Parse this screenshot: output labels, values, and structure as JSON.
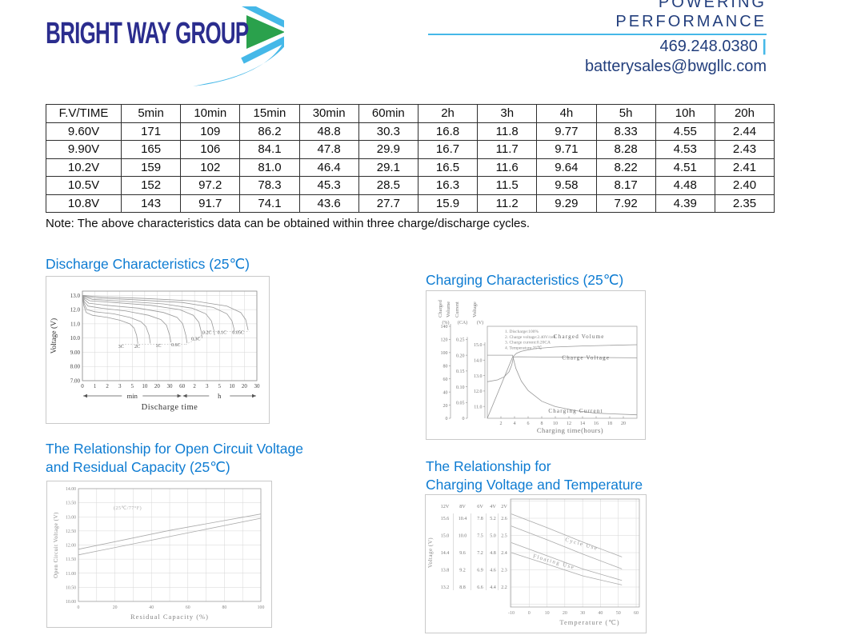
{
  "header": {
    "logo_text": "BRIGHT WAY GROUP",
    "tagline_line1": "POWERING",
    "tagline_line2": "PERFORMANCE",
    "phone": "469.248.0380",
    "phone_separator": "|",
    "email": "batterysales@bwgllc.com"
  },
  "colors": {
    "brand_navy": "#2b2d8e",
    "brand_light_blue": "#45b8e8",
    "brand_green": "#2aa14c",
    "contact_navy": "#223e7c",
    "section_title_blue": "#0e7cd2"
  },
  "table": {
    "headers": [
      "F.V/TIME",
      "5min",
      "10min",
      "15min",
      "30min",
      "60min",
      "2h",
      "3h",
      "4h",
      "5h",
      "10h",
      "20h"
    ],
    "rows": [
      [
        "9.60V",
        "171",
        "109",
        "86.2",
        "48.8",
        "30.3",
        "16.8",
        "11.8",
        "9.77",
        "8.33",
        "4.55",
        "2.44"
      ],
      [
        "9.90V",
        "165",
        "106",
        "84.1",
        "47.8",
        "29.9",
        "16.7",
        "11.7",
        "9.71",
        "8.28",
        "4.53",
        "2.43"
      ],
      [
        "10.2V",
        "159",
        "102",
        "81.0",
        "46.4",
        "29.1",
        "16.5",
        "11.6",
        "9.64",
        "8.22",
        "4.51",
        "2.41"
      ],
      [
        "10.5V",
        "152",
        "97.2",
        "78.3",
        "45.3",
        "28.5",
        "16.3",
        "11.5",
        "9.58",
        "8.17",
        "4.48",
        "2.40"
      ],
      [
        "10.8V",
        "143",
        "91.7",
        "74.1",
        "43.6",
        "27.7",
        "15.9",
        "11.2",
        "9.29",
        "7.92",
        "4.39",
        "2.35"
      ]
    ],
    "note": "Note: The above characteristics data can be obtained within three charge/discharge cycles."
  },
  "sections": {
    "discharge_title": "Discharge Characteristics (25℃)",
    "charging_title": "Charging Characteristics (25℃)",
    "ocv_title_line1": "The Relationship for Open Circuit Voltage",
    "ocv_title_line2": "and Residual Capacity (25℃)",
    "temp_title_line1": "The Relationship for",
    "temp_title_line2": "Charging Voltage and Temperature"
  },
  "chart_data": [
    {
      "id": "discharge",
      "type": "line",
      "title": "Discharge Characteristics (25℃)",
      "xlabel": "Discharge time",
      "ylabel": "Voltage (V)",
      "x_unit_segments": [
        "min",
        "h"
      ],
      "xticks": [
        "0",
        "1",
        "2",
        "3",
        "5",
        "10",
        "20",
        "30",
        "60",
        "2",
        "3",
        "5",
        "10",
        "20",
        "30"
      ],
      "yticks": [
        "13.0",
        "12.0",
        "11.0",
        "10.0",
        "9.00",
        "8.00",
        "7.00"
      ],
      "ytick_values": [
        13,
        12,
        11,
        10,
        9,
        8,
        7
      ],
      "ylim": [
        7,
        13.3
      ],
      "series": [
        {
          "name": "3C",
          "label_pos": [
            3.1,
            9.3
          ],
          "points": [
            [
              0,
              13.0
            ],
            [
              0.1,
              12.3
            ],
            [
              0.3,
              11.8
            ],
            [
              0.8,
              11.6
            ],
            [
              2,
              11.45
            ],
            [
              3,
              11.25
            ],
            [
              3.8,
              11.0
            ],
            [
              4.15,
              10.7
            ],
            [
              4.35,
              10.2
            ],
            [
              4.45,
              9.6
            ]
          ]
        },
        {
          "name": "2C",
          "label_pos": [
            4.4,
            9.3
          ],
          "points": [
            [
              0,
              13.0
            ],
            [
              0.12,
              12.45
            ],
            [
              0.35,
              12.0
            ],
            [
              1,
              11.85
            ],
            [
              2.5,
              11.7
            ],
            [
              3.8,
              11.45
            ],
            [
              4.7,
              11.15
            ],
            [
              5.1,
              10.8
            ],
            [
              5.35,
              10.2
            ],
            [
              5.45,
              9.62
            ]
          ]
        },
        {
          "name": "1C",
          "label_pos": [
            6.1,
            9.35
          ],
          "points": [
            [
              0,
              13.0
            ],
            [
              0.15,
              12.55
            ],
            [
              0.45,
              12.25
            ],
            [
              1.5,
              12.1
            ],
            [
              3.5,
              11.9
            ],
            [
              5.3,
              11.6
            ],
            [
              6.3,
              11.3
            ],
            [
              6.75,
              10.9
            ],
            [
              7.0,
              10.2
            ],
            [
              7.1,
              9.7
            ]
          ]
        },
        {
          "name": "0.6C",
          "label_pos": [
            7.5,
            9.42
          ],
          "points": [
            [
              0,
              13.0
            ],
            [
              0.18,
              12.7
            ],
            [
              0.5,
              12.45
            ],
            [
              2,
              12.3
            ],
            [
              4.5,
              12.1
            ],
            [
              6.5,
              11.8
            ],
            [
              7.6,
              11.45
            ],
            [
              8.05,
              11.0
            ],
            [
              8.3,
              10.2
            ],
            [
              8.4,
              9.65
            ]
          ]
        },
        {
          "name": "0.3C",
          "label_pos": [
            9.1,
            9.85
          ],
          "points": [
            [
              0,
              13.0
            ],
            [
              0.2,
              12.8
            ],
            [
              0.6,
              12.62
            ],
            [
              2.5,
              12.5
            ],
            [
              5.5,
              12.3
            ],
            [
              7.8,
              12.0
            ],
            [
              8.9,
              11.6
            ],
            [
              9.35,
              11.1
            ],
            [
              9.55,
              10.4
            ],
            [
              9.6,
              10.0
            ]
          ]
        },
        {
          "name": "0.2C",
          "label_pos": [
            10.0,
            10.28
          ],
          "points": [
            [
              0,
              13.0
            ],
            [
              0.25,
              12.88
            ],
            [
              0.8,
              12.72
            ],
            [
              3,
              12.6
            ],
            [
              6.5,
              12.4
            ],
            [
              8.8,
              12.1
            ],
            [
              9.9,
              11.7
            ],
            [
              10.35,
              11.2
            ],
            [
              10.55,
              10.55
            ],
            [
              10.6,
              10.2
            ]
          ]
        },
        {
          "name": "0.1C",
          "label_pos": [
            11.2,
            10.28
          ],
          "points": [
            [
              0,
              13.0
            ],
            [
              0.3,
              12.93
            ],
            [
              1,
              12.82
            ],
            [
              4,
              12.7
            ],
            [
              8,
              12.5
            ],
            [
              10.5,
              12.15
            ],
            [
              11.6,
              11.7
            ],
            [
              12.0,
              11.2
            ],
            [
              12.15,
              10.7
            ],
            [
              12.2,
              10.5
            ]
          ]
        },
        {
          "name": "0.05C",
          "label_pos": [
            12.5,
            10.28
          ],
          "points": [
            [
              0,
              13.0
            ],
            [
              0.35,
              12.97
            ],
            [
              1.5,
              12.9
            ],
            [
              5,
              12.78
            ],
            [
              9,
              12.6
            ],
            [
              11.6,
              12.25
            ],
            [
              12.7,
              11.8
            ],
            [
              13.1,
              11.3
            ],
            [
              13.25,
              10.75
            ],
            [
              13.3,
              10.55
            ]
          ]
        }
      ],
      "dotted_guides": [
        [
          [
            3.2,
            9.55
          ],
          [
            8.3,
            9.55
          ]
        ],
        [
          [
            8.3,
            9.55
          ],
          [
            9.3,
            10.0
          ]
        ],
        [
          [
            9.3,
            10.0
          ],
          [
            9.9,
            10.45
          ],
          [
            13.4,
            10.45
          ]
        ]
      ]
    },
    {
      "id": "charging",
      "type": "line",
      "title": "Charging Characteristics (25℃)",
      "xlabel": "Charging time(hours)",
      "xticks": [
        "2",
        "4",
        "6",
        "8",
        "10",
        "12",
        "14",
        "16",
        "18",
        "20"
      ],
      "xtick_values": [
        2,
        4,
        6,
        8,
        10,
        12,
        14,
        16,
        18,
        20
      ],
      "xlim": [
        0,
        22
      ],
      "axes": [
        {
          "name": "volume",
          "title": [
            "Charged",
            "Volume"
          ],
          "unit": "(%)",
          "ticks": [
            "140",
            "120",
            "100",
            "80",
            "60",
            "40",
            "20",
            "0"
          ],
          "values": [
            140,
            120,
            100,
            80,
            60,
            40,
            20,
            0
          ]
        },
        {
          "name": "current",
          "title": [
            "Current"
          ],
          "unit": "(CA)",
          "ticks": [
            "0.25",
            "0.20",
            "0.15",
            "0.10",
            "0.05",
            "0"
          ],
          "values": [
            0.25,
            0.2,
            0.15,
            0.1,
            0.05,
            0
          ]
        },
        {
          "name": "voltage",
          "title": [
            "Voltage"
          ],
          "unit": "(V)",
          "ticks": [
            "15.0",
            "14.0",
            "13.0",
            "12.0",
            "11.0"
          ],
          "values": [
            15,
            14,
            13,
            12,
            11
          ]
        }
      ],
      "notes": [
        "1. Discharge:100%",
        "2. Charge voltage:2.40V/cell",
        "3. Charge current:0.20CA",
        "4. Temperature:25℃"
      ],
      "series": [
        {
          "name": "Charged Volume",
          "axis": "volume",
          "label_pos": [
            13.5,
            122
          ],
          "points": [
            [
              0,
              0
            ],
            [
              3.7,
              93
            ],
            [
              4.3,
              99
            ],
            [
              5,
              102
            ],
            [
              7,
              106
            ],
            [
              10,
              108.5
            ],
            [
              14,
              110
            ],
            [
              22,
              112
            ]
          ]
        },
        {
          "name": "Charge Voltage",
          "axis": "voltage",
          "label_pos": [
            14.5,
            14.05
          ],
          "points": [
            [
              0,
              12.6
            ],
            [
              1.5,
              12.72
            ],
            [
              2.5,
              12.92
            ],
            [
              3.2,
              13.25
            ],
            [
              3.6,
              13.7
            ],
            [
              3.85,
              14.2
            ],
            [
              4.5,
              14.22
            ],
            [
              22,
              14.15
            ]
          ]
        },
        {
          "name": "Charging Current",
          "axis": "current",
          "label_pos": [
            13.0,
            0.018
          ],
          "points": [
            [
              0,
              0.2
            ],
            [
              3.7,
              0.2
            ],
            [
              4.2,
              0.158
            ],
            [
              5,
              0.118
            ],
            [
              6,
              0.088
            ],
            [
              8,
              0.054
            ],
            [
              10,
              0.037
            ],
            [
              13,
              0.024
            ],
            [
              16,
              0.016
            ],
            [
              22,
              0.011
            ]
          ]
        }
      ]
    },
    {
      "id": "ocv",
      "type": "line",
      "ylabel": "Open Circuit Voltage (V)",
      "xlabel": "Residual Capacity (%)",
      "yticks": [
        "14.00",
        "13.50",
        "13.00",
        "12.50",
        "12.00",
        "11.50",
        "11.00",
        "10.50",
        "10.00"
      ],
      "ytick_values": [
        14,
        13.5,
        13,
        12.5,
        12,
        11.5,
        11,
        10.5,
        10
      ],
      "xticks": [
        "0",
        "20",
        "40",
        "60",
        "80",
        "100"
      ],
      "xtick_values": [
        0,
        20,
        40,
        60,
        80,
        100
      ],
      "annotation": "(25℃/77°F)",
      "annotation_pos": [
        27,
        13.26
      ],
      "series": [
        {
          "name": "upper",
          "points": [
            [
              0,
              11.85
            ],
            [
              50,
              12.52
            ],
            [
              100,
              13.1
            ]
          ]
        },
        {
          "name": "lower",
          "points": [
            [
              0,
              11.65
            ],
            [
              50,
              12.3
            ],
            [
              100,
              12.95
            ]
          ]
        }
      ]
    },
    {
      "id": "temperature",
      "type": "line",
      "ylabel": "Voltage (V)",
      "xlabel": "Temperature (℃)",
      "scales": [
        {
          "name": "12V",
          "ticks": [
            "15.6",
            "15.0",
            "14.4",
            "13.8",
            "13.2"
          ]
        },
        {
          "name": "8V",
          "ticks": [
            "10.4",
            "10.0",
            "9.6",
            "9.2",
            "8.8"
          ]
        },
        {
          "name": "6V",
          "ticks": [
            "7.8",
            "7.5",
            "7.2",
            "6.9",
            "6.6"
          ]
        },
        {
          "name": "4V",
          "ticks": [
            "5.2",
            "5.0",
            "4.8",
            "4.6",
            "4.4"
          ]
        },
        {
          "name": "2V",
          "ticks": [
            "2.6",
            "2.5",
            "2.4",
            "2.3",
            "2.2"
          ]
        }
      ],
      "xticks": [
        "-10",
        "0",
        "10",
        "20",
        "30",
        "40",
        "50",
        "60"
      ],
      "xtick_values": [
        -10,
        0,
        10,
        20,
        30,
        40,
        50,
        60
      ],
      "bands": [
        {
          "name": "Cycle Use",
          "label_pos": [
            20,
            2.468
          ],
          "lines": [
            [
              [
                -10,
                2.625
              ],
              [
                10,
                2.545
              ],
              [
                30,
                2.462
              ],
              [
                52,
                2.375
              ]
            ],
            [
              [
                -10,
                2.555
              ],
              [
                10,
                2.475
              ],
              [
                30,
                2.392
              ],
              [
                52,
                2.305
              ]
            ]
          ]
        },
        {
          "name": "Floating Use",
          "label_pos": [
            2,
            2.372
          ],
          "lines": [
            [
              [
                -10,
                2.458
              ],
              [
                10,
                2.382
              ],
              [
                30,
                2.305
              ],
              [
                52,
                2.238
              ]
            ],
            [
              [
                -10,
                2.4
              ],
              [
                10,
                2.333
              ],
              [
                30,
                2.265
              ],
              [
                52,
                2.212
              ]
            ]
          ]
        }
      ]
    }
  ]
}
